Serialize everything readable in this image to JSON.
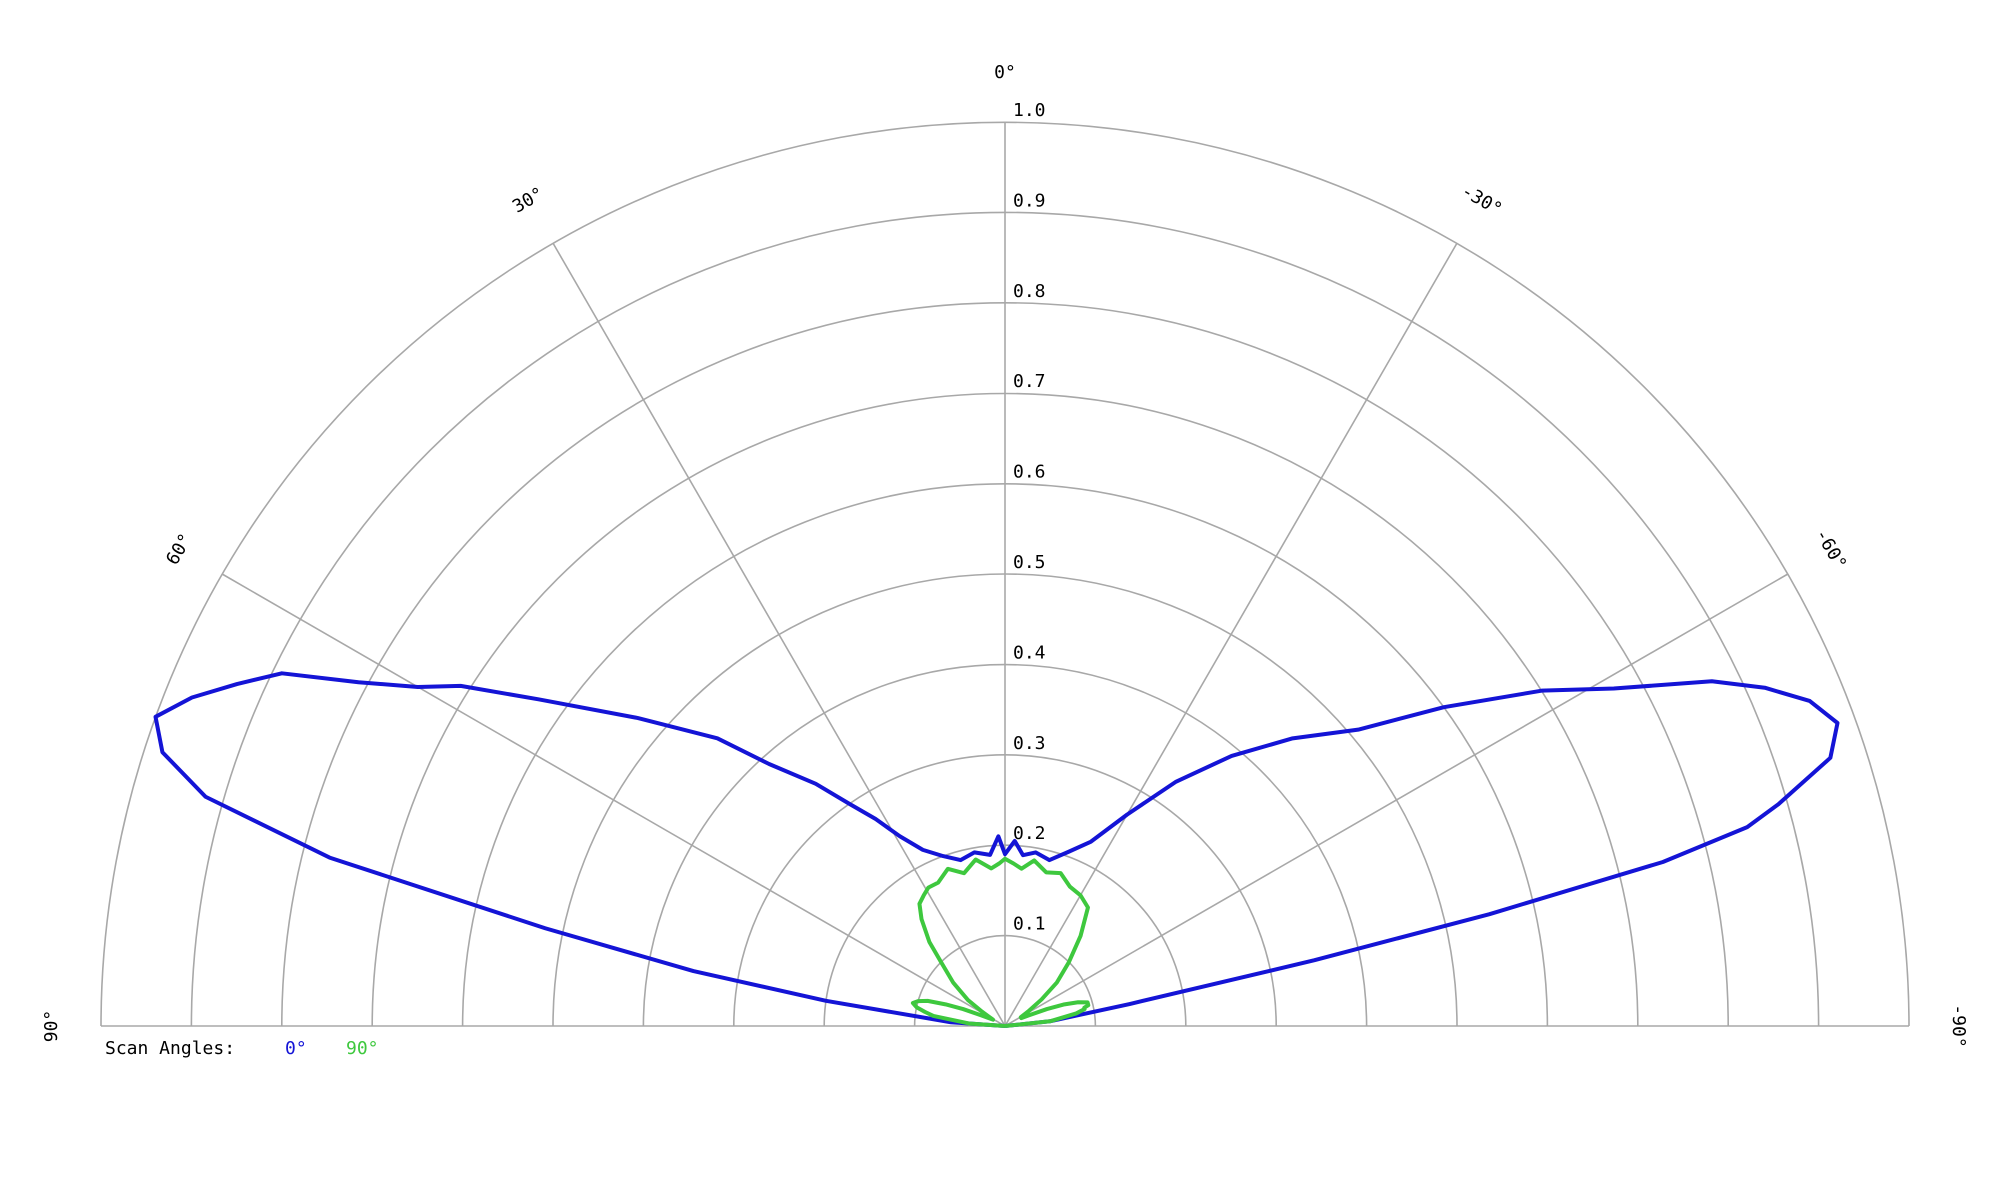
{
  "chart_data": {
    "type": "polar",
    "thetalim": [
      -90,
      90
    ],
    "rlim": [
      0,
      1
    ],
    "rticks": [
      0.1,
      0.2,
      0.3,
      0.4,
      0.5,
      0.6,
      0.7,
      0.8,
      0.9,
      {
        "value": 1,
        "label": "1.0"
      }
    ],
    "thetaticks": [
      {
        "value": 90,
        "label": "90°"
      },
      {
        "value": 60,
        "label": "60°"
      },
      {
        "value": 30,
        "label": "30°"
      },
      {
        "value": 0,
        "label": "0°"
      },
      {
        "value": -30,
        "label": "-30°"
      },
      {
        "value": -60,
        "label": "-60°"
      },
      {
        "value": -90,
        "label": "-90°"
      }
    ],
    "grid": true,
    "legend_title": "Scan Angles:",
    "legend_position": "bottom-left",
    "x": [
      90,
      86,
      82,
      80,
      78,
      76,
      74,
      72,
      70,
      68,
      66,
      64,
      62,
      60,
      58,
      55,
      50,
      45,
      42,
      38,
      35,
      32,
      29,
      25,
      20,
      15,
      10,
      5,
      2,
      0,
      -3,
      -6,
      -10,
      -15,
      -20,
      -25,
      -30,
      -35,
      -40,
      -45,
      -50,
      -54,
      -58,
      -61,
      -64,
      -66,
      -68,
      -70,
      -72,
      -74,
      -75,
      -76,
      -77,
      -78,
      -80,
      -84,
      -90
    ],
    "series": [
      {
        "name": "0°",
        "color": "#1414d6",
        "values": [
          0,
          0.06,
          0.2,
          0.35,
          0.52,
          0.77,
          0.92,
          0.98,
          1.0,
          0.97,
          0.93,
          0.89,
          0.81,
          0.75,
          0.71,
          0.63,
          0.53,
          0.45,
          0.39,
          0.34,
          0.3,
          0.27,
          0.24,
          0.215,
          0.2,
          0.19,
          0.195,
          0.19,
          0.21,
          0.19,
          0.205,
          0.19,
          0.195,
          0.19,
          0.205,
          0.225,
          0.27,
          0.33,
          0.39,
          0.45,
          0.51,
          0.6,
          0.7,
          0.77,
          0.87,
          0.92,
          0.96,
          0.98,
          0.96,
          0.89,
          0.85,
          0.75,
          0.55,
          0.35,
          0.14,
          0.05,
          0
        ]
      },
      {
        "name": "90°",
        "color": "#3ec83e",
        "values": [
          0,
          0.04,
          0.08,
          0.09,
          0.1,
          0.105,
          0.1,
          0.09,
          0.07,
          0.05,
          0.03,
          0.02,
          0.015,
          0.02,
          0.03,
          0.05,
          0.075,
          0.1,
          0.125,
          0.15,
          0.165,
          0.17,
          0.175,
          0.175,
          0.185,
          0.175,
          0.187,
          0.175,
          0.18,
          0.185,
          0.18,
          0.175,
          0.186,
          0.176,
          0.18,
          0.17,
          0.167,
          0.16,
          0.13,
          0.1,
          0.075,
          0.05,
          0.03,
          0.02,
          0.02,
          0.03,
          0.05,
          0.07,
          0.085,
          0.095,
          0.095,
          0.095,
          0.09,
          0.09,
          0.08,
          0.05,
          0
        ]
      }
    ]
  }
}
